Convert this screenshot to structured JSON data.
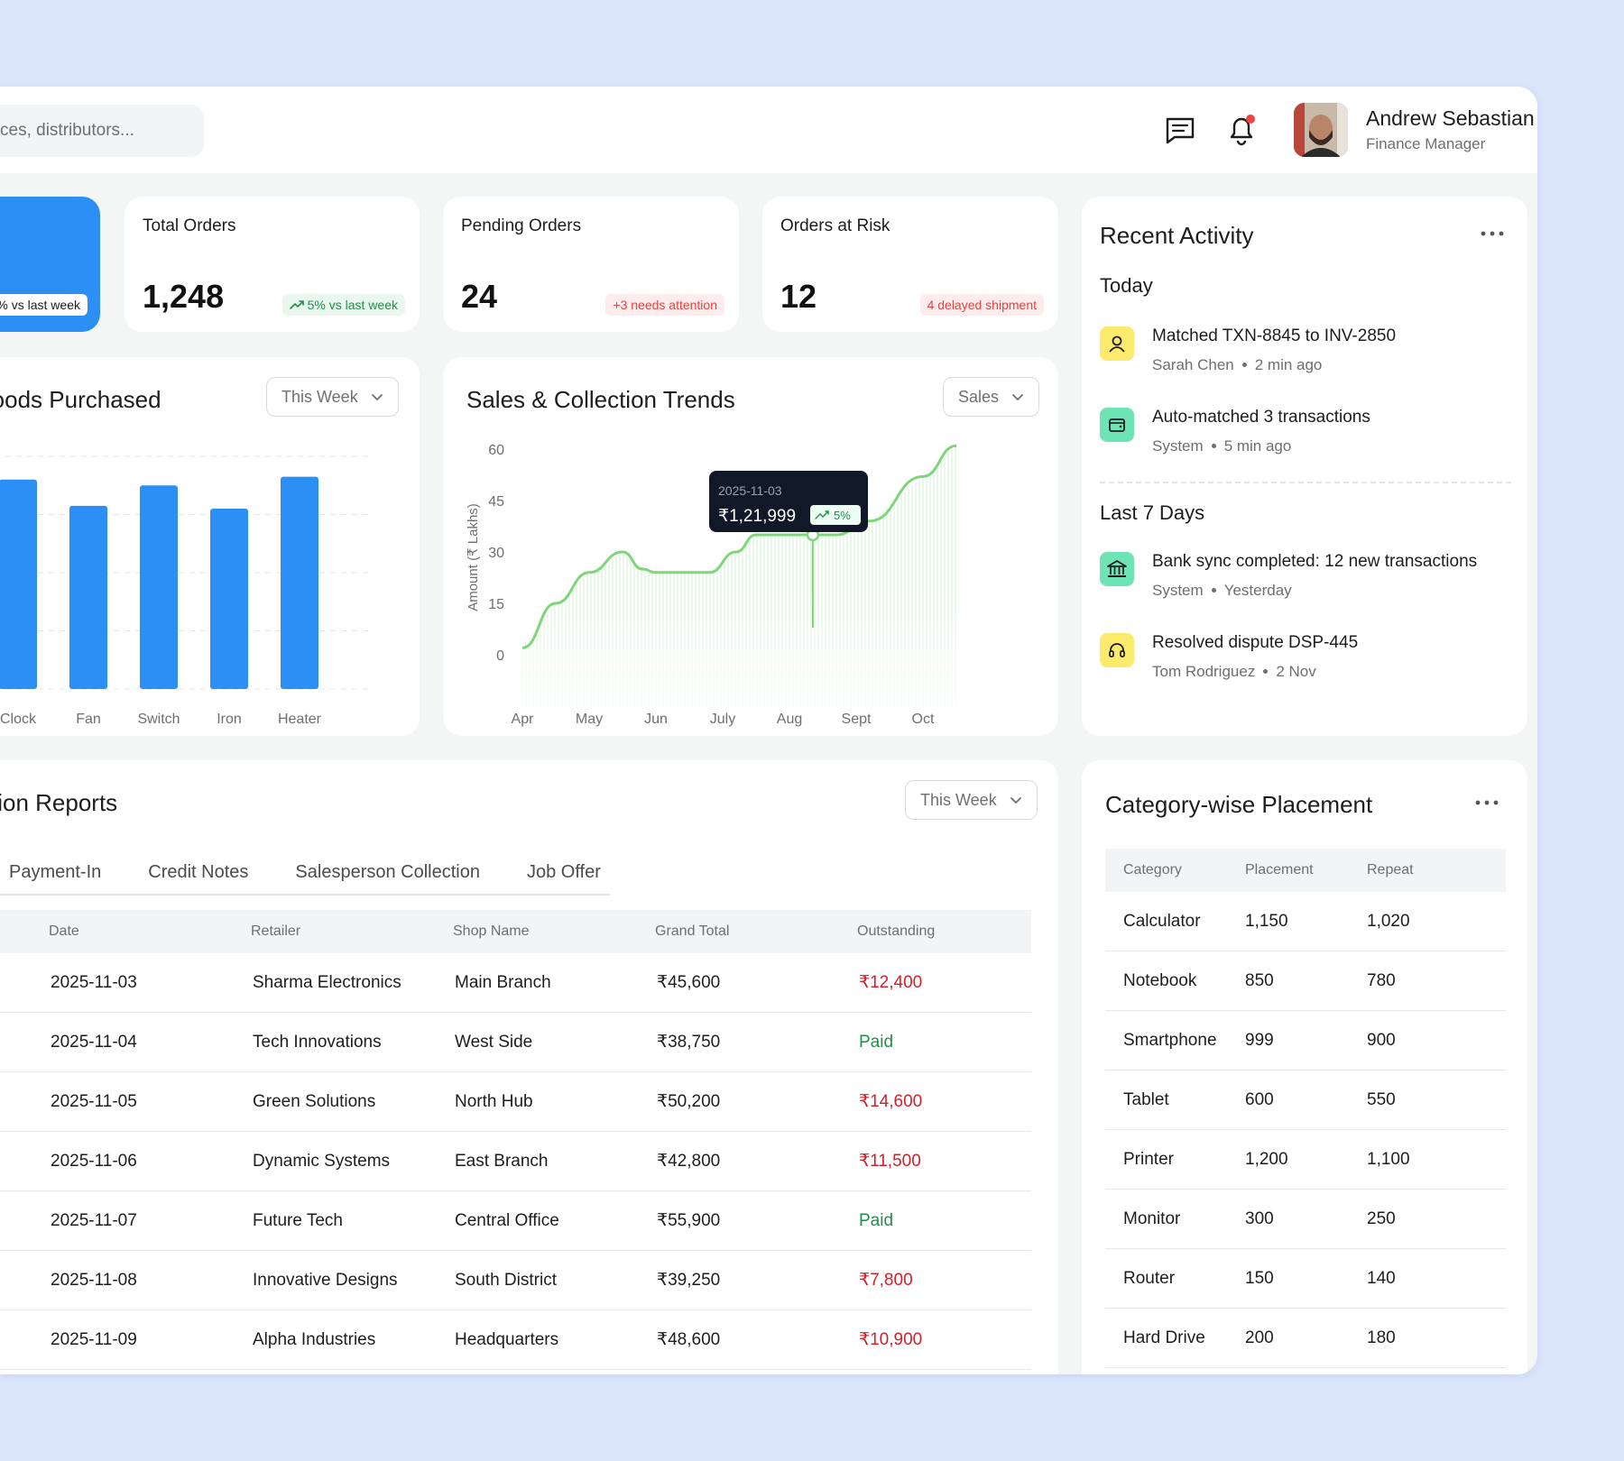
{
  "header": {
    "search_placeholder": "ces, distributors...",
    "user_name": "Andrew Sebastian",
    "user_role": "Finance Manager",
    "icons": [
      "message-icon",
      "bell-icon"
    ]
  },
  "kpis": {
    "first_card_pill": "% vs last week",
    "total_orders": {
      "title": "Total Orders",
      "value": "1,248",
      "pill": "5% vs last week"
    },
    "pending_orders": {
      "title": "Pending Orders",
      "value": "24",
      "pill": "+3 needs attention"
    },
    "orders_at_risk": {
      "title": "Orders at Risk",
      "value": "12",
      "pill": "4 delayed shipment"
    }
  },
  "goods_panel": {
    "title": "Goods Purchased",
    "filter": "This Week"
  },
  "trends_panel": {
    "title": "Sales & Collection Trends",
    "filter": "Sales"
  },
  "chart_data": [
    {
      "type": "bar",
      "title": "Goods Purchased",
      "categories": [
        "Clock",
        "Fan",
        "Switch",
        "Iron",
        "Heater"
      ],
      "values": [
        72,
        63,
        70,
        62,
        73
      ],
      "ylim": [
        0,
        80
      ],
      "grid": true,
      "color": "#2b8ff5"
    },
    {
      "type": "area",
      "title": "Sales & Collection Trends",
      "ylabel": "Amount (₹ Lakhs)",
      "x": [
        "Apr",
        "May",
        "Jun",
        "July",
        "Aug",
        "Sept",
        "Oct"
      ],
      "yticks": [
        0,
        15,
        30,
        45,
        60
      ],
      "ylim": [
        0,
        60
      ],
      "series": [
        {
          "points": [
            [
              0,
              2
            ],
            [
              0.5,
              15
            ],
            [
              1,
              24
            ],
            [
              1.5,
              30
            ],
            [
              1.8,
              25
            ],
            [
              2,
              24
            ],
            [
              2.8,
              24
            ],
            [
              3.2,
              30
            ],
            [
              3.5,
              35
            ],
            [
              4.3,
              35
            ],
            [
              4.7,
              35
            ],
            [
              5.2,
              39
            ],
            [
              6,
              52
            ],
            [
              6.5,
              61
            ]
          ]
        }
      ],
      "line_color": "#7fd67a",
      "tooltip": {
        "date": "2025-11-03",
        "value": "₹1,21,999",
        "change": "5%",
        "x": 4.35,
        "y": 35
      }
    }
  ],
  "activity": {
    "title": "Recent Activity",
    "sections": [
      {
        "label": "Today",
        "items": [
          {
            "title": "Matched TXN-8845 to INV-2850",
            "who": "Sarah Chen",
            "when": "2 min ago",
            "icon": "user-icon",
            "color": "#fbea6b"
          },
          {
            "title": "Auto-matched 3 transactions",
            "who": "System",
            "when": "5 min ago",
            "icon": "wallet-icon",
            "color": "#6ee3b4"
          }
        ]
      },
      {
        "label": "Last 7 Days",
        "items": [
          {
            "title": "Bank sync completed: 12 new transactions",
            "who": "System",
            "when": "Yesterday",
            "icon": "bank-icon",
            "color": "#6ee3b4"
          },
          {
            "title": "Resolved dispute DSP-445",
            "who": "Tom Rodriguez",
            "when": "2 Nov",
            "icon": "headset-icon",
            "color": "#fbea6b"
          }
        ]
      }
    ]
  },
  "reports": {
    "title": "tion Reports",
    "filter": "This Week",
    "tabs": [
      "Payment-In",
      "Credit Notes",
      "Salesperson Collection",
      "Job Offer"
    ],
    "columns": [
      "Date",
      "Retailer",
      "Shop Name",
      "Grand Total",
      "Outstanding"
    ],
    "rows": [
      [
        "2025-11-03",
        "Sharma Electronics",
        "Main Branch",
        "₹45,600",
        "₹12,400"
      ],
      [
        "2025-11-04",
        "Tech Innovations",
        "West Side",
        "₹38,750",
        "Paid"
      ],
      [
        "2025-11-05",
        "Green Solutions",
        "North Hub",
        "₹50,200",
        "₹14,600"
      ],
      [
        "2025-11-06",
        "Dynamic Systems",
        "East Branch",
        "₹42,800",
        "₹11,500"
      ],
      [
        "2025-11-07",
        "Future Tech",
        "Central Office",
        "₹55,900",
        "Paid"
      ],
      [
        "2025-11-08",
        "Innovative Designs",
        "South District",
        "₹39,250",
        "₹7,800"
      ],
      [
        "2025-11-09",
        "Alpha Industries",
        "Headquarters",
        "₹48,600",
        "₹10,900"
      ]
    ],
    "paid_color": "#1f8f4a",
    "due_color": "#d0202a"
  },
  "placement": {
    "title": "Category-wise Placement",
    "columns": [
      "Category",
      "Placement",
      "Repeat"
    ],
    "rows": [
      [
        "Calculator",
        "1,150",
        "1,020"
      ],
      [
        "Notebook",
        "850",
        "780"
      ],
      [
        "Smartphone",
        "999",
        "900"
      ],
      [
        "Tablet",
        "600",
        "550"
      ],
      [
        "Printer",
        "1,200",
        "1,100"
      ],
      [
        "Monitor",
        "300",
        "250"
      ],
      [
        "Router",
        "150",
        "140"
      ],
      [
        "Hard Drive",
        "200",
        "180"
      ]
    ]
  }
}
